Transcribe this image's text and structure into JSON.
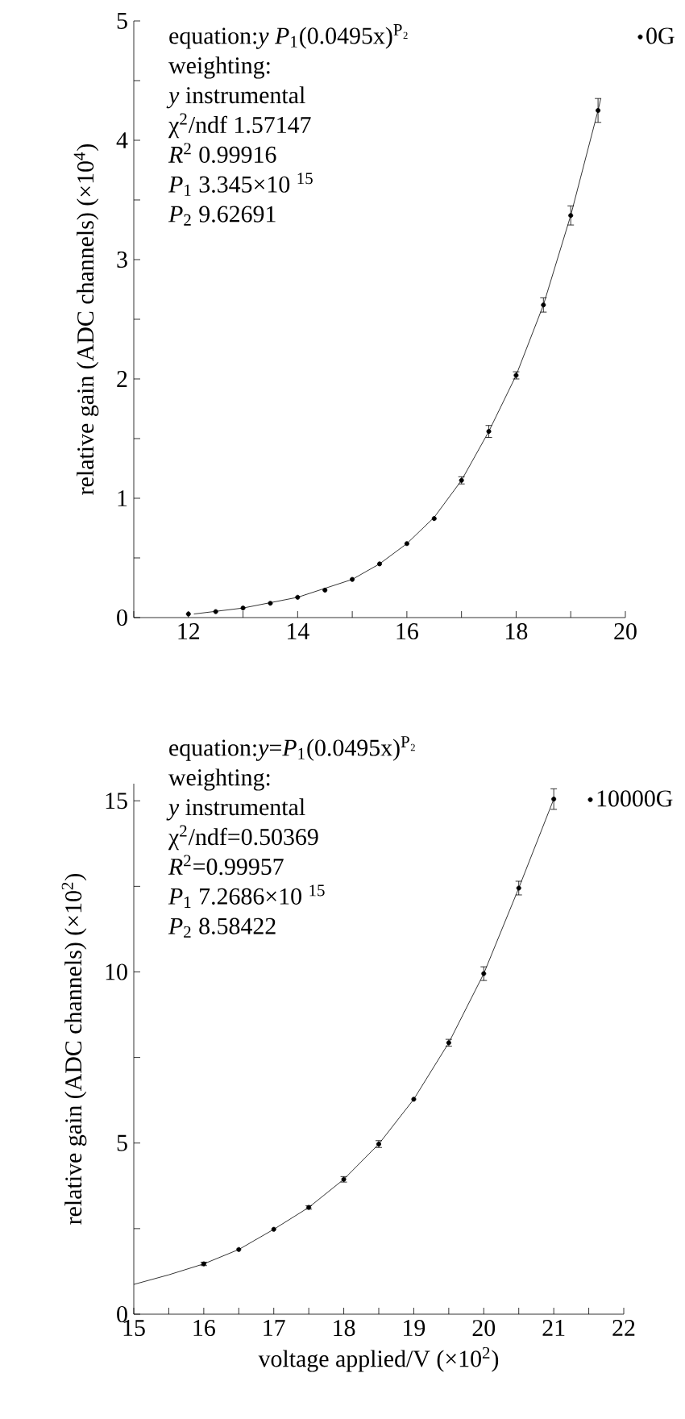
{
  "chart_data": [
    {
      "type": "scatter",
      "ylabel": "relative gain (ADC channels)  (×10$^{4}$)",
      "xlim": [
        11,
        20
      ],
      "xticks": [
        {
          "value": 11,
          "label": null
        },
        12,
        {
          "value": 13,
          "label": null
        },
        14,
        {
          "value": 15,
          "label": null
        },
        16,
        {
          "value": 17,
          "label": null
        },
        18,
        {
          "value": 19,
          "label": null
        },
        20
      ],
      "ylim": [
        0,
        5
      ],
      "yticks": [
        0,
        {
          "value": 0.5,
          "label": null
        },
        1,
        {
          "value": 1.5,
          "label": null
        },
        2,
        {
          "value": 2.5,
          "label": null
        },
        3,
        {
          "value": 3.5,
          "label": null
        },
        4,
        {
          "value": 4.5,
          "label": null
        },
        5
      ],
      "grid": false,
      "legend": "top right",
      "annotations": [
        "equation:*y*  *P*$_{1}$(0.0495x)$^{P₂}$",
        "weighting:",
        "*y*  instrumental",
        "χ$^{2}$/ndf  1.57147",
        "*R*$^{2}$  0.99916",
        "*P*$_{1}$  3.345×10 $^{15}$",
        "*P*$_{2}$  9.62691"
      ],
      "series": [
        {
          "name": "0G",
          "type": "scatter",
          "marker": "circle",
          "color": "#000000",
          "x": [
            12,
            12.5,
            13,
            13.5,
            14,
            14.5,
            15,
            15.5,
            16,
            16.5,
            17,
            17.5,
            18,
            18.5,
            19,
            19.5
          ],
          "values": [
            0.03,
            0.05,
            0.08,
            0.12,
            0.17,
            0.23,
            0.32,
            0.45,
            0.62,
            0.83,
            1.15,
            1.56,
            2.03,
            2.62,
            3.37,
            4.25
          ],
          "errors": [
            null,
            null,
            null,
            null,
            null,
            null,
            null,
            null,
            null,
            null,
            0.03,
            0.05,
            0.03,
            0.06,
            0.08,
            0.1
          ]
        },
        {
          "type": "line",
          "marker": "none",
          "line_style": "solid",
          "color": "#000000",
          "x": [
            12.1,
            13,
            14,
            15,
            15.5,
            16,
            16.5,
            17,
            17.5,
            18,
            18.5,
            19,
            19.5,
            19.55
          ],
          "values": [
            0.03,
            0.08,
            0.17,
            0.32,
            0.45,
            0.62,
            0.84,
            1.15,
            1.56,
            2.03,
            2.62,
            3.37,
            4.25,
            4.35
          ]
        }
      ]
    },
    {
      "type": "scatter",
      "ylabel": "relative gain (ADC channels)  (×10$^{2}$)",
      "xlabel": "voltage applied/V  (×10$^{2}$)",
      "xlim": [
        15,
        22
      ],
      "xticks": [
        15,
        {
          "value": 15.5,
          "label": null
        },
        16,
        {
          "value": 16.5,
          "label": null
        },
        17,
        {
          "value": 17.5,
          "label": null
        },
        18,
        {
          "value": 18.5,
          "label": null
        },
        19,
        {
          "value": 19.5,
          "label": null
        },
        20,
        {
          "value": 20.5,
          "label": null
        },
        21,
        {
          "value": 21.5,
          "label": null
        },
        22
      ],
      "ylim": [
        0,
        15.5
      ],
      "yticks": [
        0,
        {
          "value": 2.5,
          "label": null
        },
        5,
        {
          "value": 7.5,
          "label": null
        },
        10,
        {
          "value": 12.5,
          "label": null
        },
        15
      ],
      "grid": false,
      "legend": "top right",
      "annotations": [
        "equation:*y*=*P*$_{1}$(0.0495x)$^{P₂}$",
        "weighting:",
        "*y*  instrumental",
        "χ$^{2}$/ndf=0.50369",
        "*R*$^{2}$=0.99957",
        "*P*$_{1}$  7.2686×10 $^{15}$",
        "*P*$_{2}$  8.58422"
      ],
      "series": [
        {
          "name": "10000G",
          "type": "scatter",
          "marker": "circle",
          "color": "#000000",
          "x": [
            16,
            16.5,
            17,
            17.5,
            18,
            18.5,
            19,
            19.5,
            20,
            20.5,
            21
          ],
          "values": [
            1.47,
            1.89,
            2.48,
            3.12,
            3.94,
            4.97,
            6.28,
            7.93,
            9.95,
            12.45,
            15.05
          ],
          "errors": [
            0.05,
            null,
            null,
            0.05,
            0.08,
            0.1,
            null,
            0.1,
            0.2,
            0.2,
            0.3
          ]
        },
        {
          "type": "line",
          "marker": "none",
          "line_style": "solid",
          "color": "#000000",
          "x": [
            15,
            15.5,
            16,
            16.5,
            17,
            17.5,
            18,
            18.5,
            19,
            19.5,
            20,
            20.5,
            21
          ],
          "values": [
            0.87,
            1.15,
            1.47,
            1.89,
            2.48,
            3.12,
            3.94,
            4.97,
            6.28,
            7.93,
            9.95,
            12.45,
            15.05
          ]
        }
      ]
    }
  ]
}
